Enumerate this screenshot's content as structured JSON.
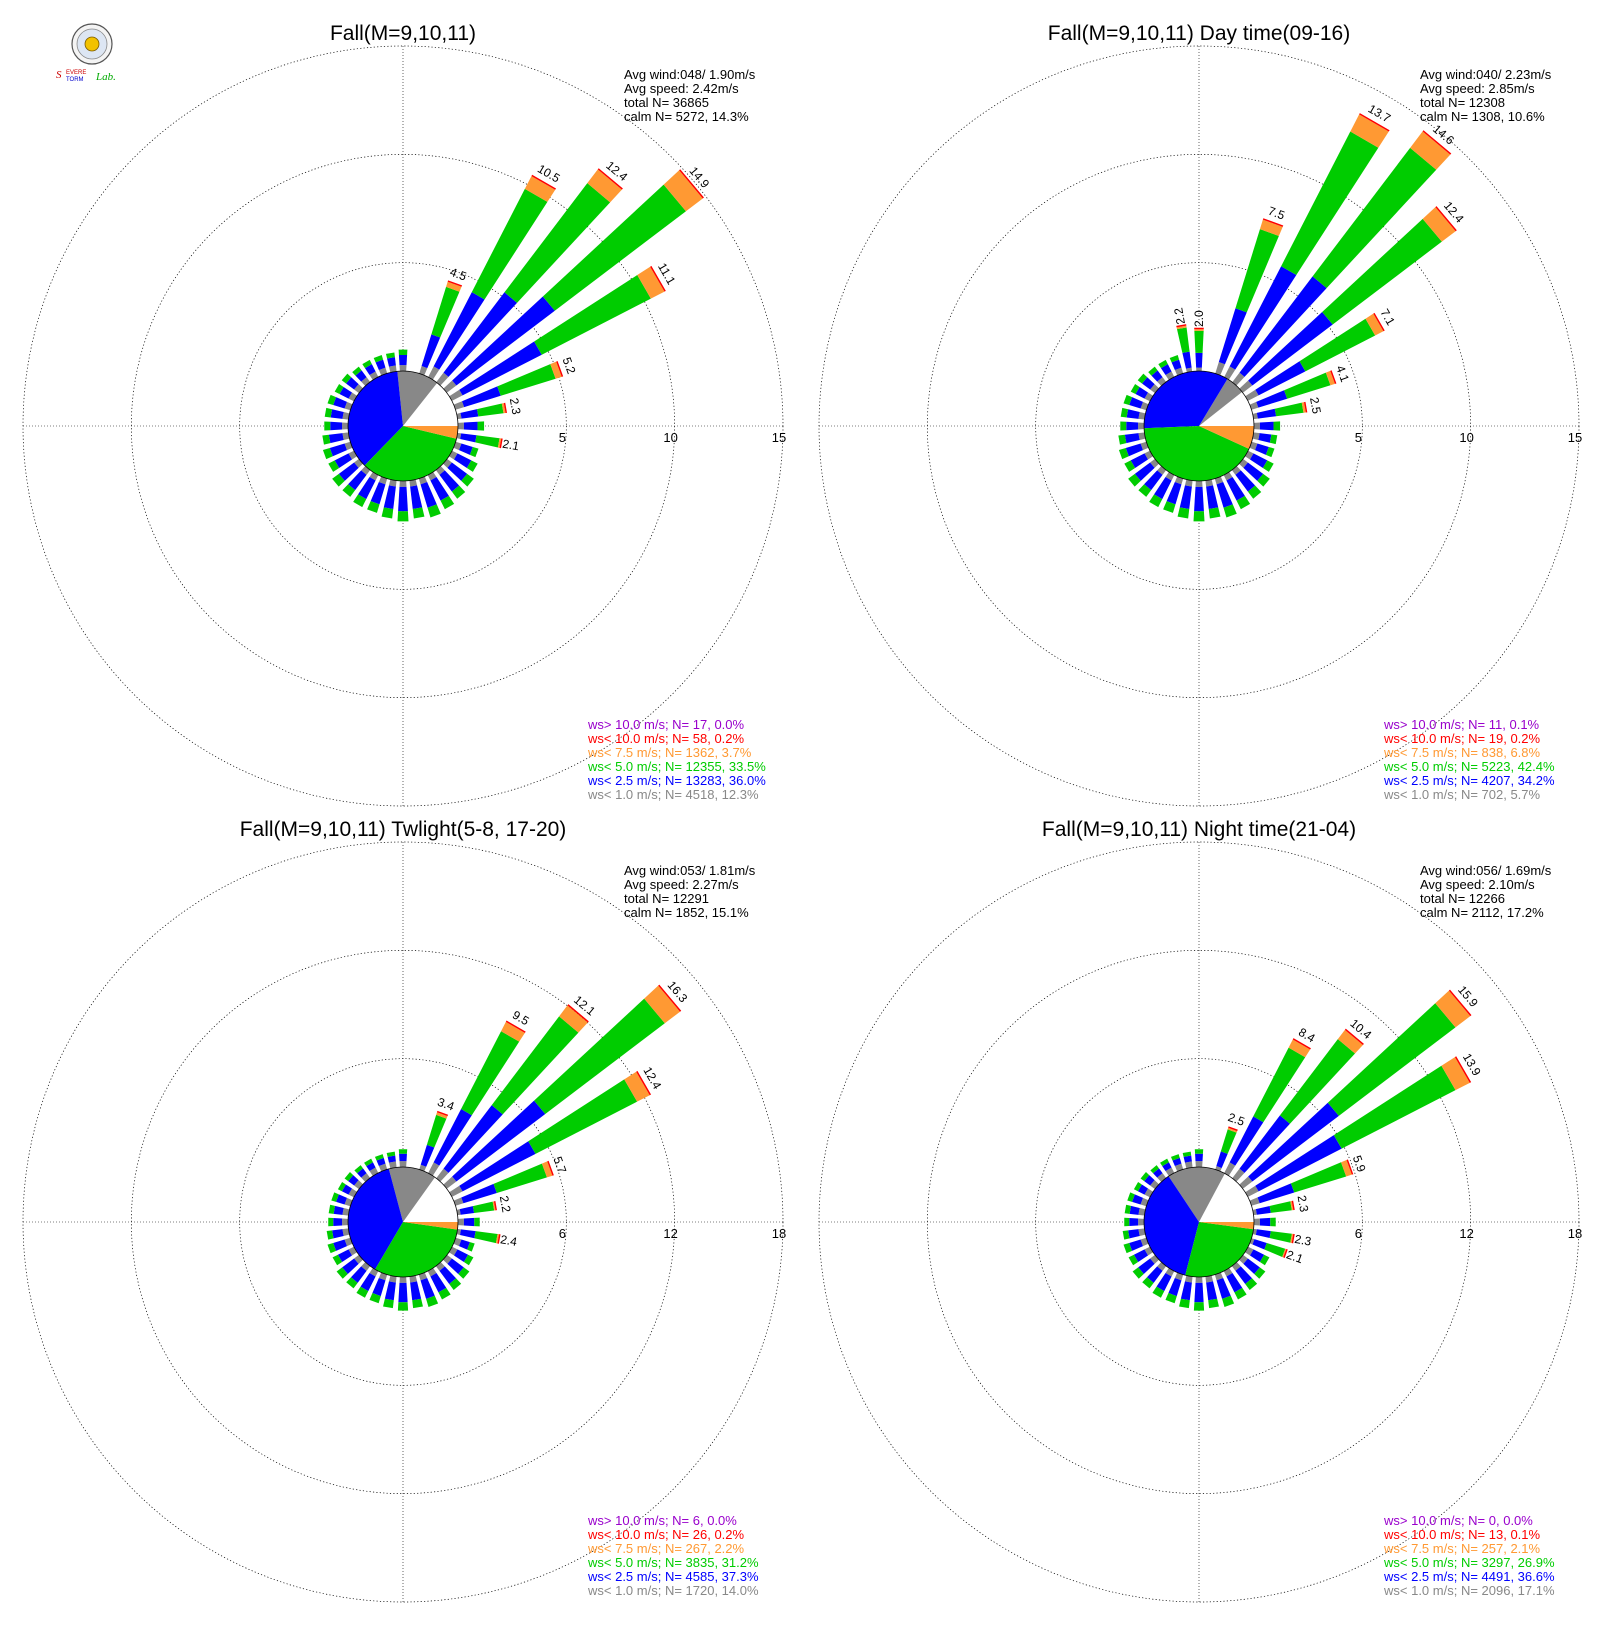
{
  "logo": {
    "text_a": "Severe",
    "text_b": "Storm",
    "text_c": "Lab."
  },
  "colors": {
    "gt10": "#9900cc",
    "lt10": "#ff0000",
    "lt75": "#ff9933",
    "lt50": "#00cc00",
    "lt25": "#0000ff",
    "lt10ms": "#888888"
  },
  "chart_data": [
    {
      "type": "wind-rose",
      "title": "Fall(M=9,10,11)",
      "info": {
        "avg_wind": "Avg wind:048/ 1.90m/s",
        "avg_speed": "Avg speed: 2.42m/s",
        "total": "total N=      36865",
        "calm": "calm N=   5272,  14.3%"
      },
      "rmax": 15,
      "ring_labels": [
        "5",
        "10",
        "15"
      ],
      "rings": [
        5,
        10,
        15
      ],
      "labeled_bars": [
        {
          "dir": 20,
          "value": 4.5,
          "label": "4.5"
        },
        {
          "dir": 30,
          "value": 10.5,
          "label": "10.5"
        },
        {
          "dir": 40,
          "value": 12.4,
          "label": "12.4"
        },
        {
          "dir": 50,
          "value": 14.9,
          "label": "14.9"
        },
        {
          "dir": 60,
          "value": 11.1,
          "label": "11.1"
        },
        {
          "dir": 70,
          "value": 5.2,
          "label": "5.2"
        },
        {
          "dir": 80,
          "value": 2.3,
          "label": "2.3"
        },
        {
          "dir": 100,
          "value": 2.1,
          "label": "2.1"
        }
      ],
      "pie": {
        "calm": 14.3,
        "lt10ms": 12.3,
        "lt25": 36.0,
        "lt50": 33.5,
        "lt75": 3.7
      },
      "legend": [
        {
          "key": "gt10",
          "text": "ws> 10.0 m/s; N=     17,  0.0%"
        },
        {
          "key": "lt10",
          "text": "ws< 10.0 m/s; N=     58,  0.2%"
        },
        {
          "key": "lt75",
          "text": "ws<  7.5 m/s; N=   1362,  3.7%"
        },
        {
          "key": "lt50",
          "text": "ws<  5.0 m/s; N= 12355, 33.5%"
        },
        {
          "key": "lt25",
          "text": "ws<  2.5 m/s; N= 13283, 36.0%"
        },
        {
          "key": "lt10ms",
          "text": "ws<  1.0 m/s; N=  4518, 12.3%"
        }
      ]
    },
    {
      "type": "wind-rose",
      "title": "Fall(M=9,10,11) Day time(09-16)",
      "info": {
        "avg_wind": "Avg wind:040/ 2.23m/s",
        "avg_speed": "Avg speed: 2.85m/s",
        "total": "total N=      12308",
        "calm": "calm N=   1308,  10.6%"
      },
      "rmax": 15,
      "ring_labels": [
        "5",
        "10",
        "15"
      ],
      "rings": [
        5,
        10,
        15
      ],
      "labeled_bars": [
        {
          "dir": 350,
          "value": 2.2,
          "label": "2.2"
        },
        {
          "dir": 360,
          "value": 2.0,
          "label": "2.0"
        },
        {
          "dir": 20,
          "value": 7.5,
          "label": "7.5"
        },
        {
          "dir": 30,
          "value": 13.7,
          "label": "13.7"
        },
        {
          "dir": 40,
          "value": 14.6,
          "label": "14.6"
        },
        {
          "dir": 50,
          "value": 12.4,
          "label": "12.4"
        },
        {
          "dir": 60,
          "value": 7.1,
          "label": "7.1"
        },
        {
          "dir": 70,
          "value": 4.1,
          "label": "4.1"
        },
        {
          "dir": 80,
          "value": 2.5,
          "label": "2.5"
        }
      ],
      "pie": {
        "calm": 10.6,
        "lt10ms": 5.7,
        "lt25": 34.2,
        "lt50": 42.4,
        "lt75": 6.8
      },
      "legend": [
        {
          "key": "gt10",
          "text": "ws> 10.0 m/s; N=     11,  0.1%"
        },
        {
          "key": "lt10",
          "text": "ws< 10.0 m/s; N=     19,  0.2%"
        },
        {
          "key": "lt75",
          "text": "ws<  7.5 m/s; N=    838,  6.8%"
        },
        {
          "key": "lt50",
          "text": "ws<  5.0 m/s; N=   5223, 42.4%"
        },
        {
          "key": "lt25",
          "text": "ws<  2.5 m/s; N=   4207, 34.2%"
        },
        {
          "key": "lt10ms",
          "text": "ws<  1.0 m/s; N=    702,  5.7%"
        }
      ]
    },
    {
      "type": "wind-rose",
      "title": "Fall(M=9,10,11) Twlight(5-8, 17-20)",
      "info": {
        "avg_wind": "Avg wind:053/ 1.81m/s",
        "avg_speed": "Avg speed: 2.27m/s",
        "total": "total N=      12291",
        "calm": "calm N=   1852,  15.1%"
      },
      "rmax": 18,
      "ring_labels": [
        "6",
        "12",
        "18"
      ],
      "rings": [
        6,
        12,
        18
      ],
      "labeled_bars": [
        {
          "dir": 20,
          "value": 3.4,
          "label": "3.4"
        },
        {
          "dir": 30,
          "value": 9.5,
          "label": "9.5"
        },
        {
          "dir": 40,
          "value": 12.1,
          "label": "12.1"
        },
        {
          "dir": 50,
          "value": 16.3,
          "label": "16.3"
        },
        {
          "dir": 60,
          "value": 12.4,
          "label": "12.4"
        },
        {
          "dir": 70,
          "value": 5.7,
          "label": "5.7"
        },
        {
          "dir": 80,
          "value": 2.2,
          "label": "2.2"
        },
        {
          "dir": 100,
          "value": 2.4,
          "label": "2.4"
        }
      ],
      "pie": {
        "calm": 15.1,
        "lt10ms": 14.0,
        "lt25": 37.3,
        "lt50": 31.2,
        "lt75": 2.2
      },
      "legend": [
        {
          "key": "gt10",
          "text": "ws> 10.0 m/s; N=      6,  0.0%"
        },
        {
          "key": "lt10",
          "text": "ws< 10.0 m/s; N=     26,  0.2%"
        },
        {
          "key": "lt75",
          "text": "ws<  7.5 m/s; N=    267,  2.2%"
        },
        {
          "key": "lt50",
          "text": "ws<  5.0 m/s; N=   3835, 31.2%"
        },
        {
          "key": "lt25",
          "text": "ws<  2.5 m/s; N=   4585, 37.3%"
        },
        {
          "key": "lt10ms",
          "text": "ws<  1.0 m/s; N=   1720, 14.0%"
        }
      ]
    },
    {
      "type": "wind-rose",
      "title": "Fall(M=9,10,11) Night time(21-04)",
      "info": {
        "avg_wind": "Avg wind:056/ 1.69m/s",
        "avg_speed": "Avg speed: 2.10m/s",
        "total": "total N=      12266",
        "calm": "calm N=   2112,  17.2%"
      },
      "rmax": 18,
      "ring_labels": [
        "6",
        "12",
        "18"
      ],
      "rings": [
        6,
        12,
        18
      ],
      "labeled_bars": [
        {
          "dir": 20,
          "value": 2.5,
          "label": "2.5"
        },
        {
          "dir": 30,
          "value": 8.4,
          "label": "8.4"
        },
        {
          "dir": 40,
          "value": 10.4,
          "label": "10.4"
        },
        {
          "dir": 50,
          "value": 15.9,
          "label": "15.9"
        },
        {
          "dir": 60,
          "value": 13.9,
          "label": "13.9"
        },
        {
          "dir": 70,
          "value": 5.9,
          "label": "5.9"
        },
        {
          "dir": 80,
          "value": 2.3,
          "label": "2.3"
        },
        {
          "dir": 100,
          "value": 2.3,
          "label": "2.3"
        },
        {
          "dir": 110,
          "value": 2.1,
          "label": "2.1"
        }
      ],
      "pie": {
        "calm": 17.2,
        "lt10ms": 17.1,
        "lt25": 36.6,
        "lt50": 26.9,
        "lt75": 2.1
      },
      "legend": [
        {
          "key": "gt10",
          "text": "ws> 10.0 m/s; N=      0,  0.0%"
        },
        {
          "key": "lt10",
          "text": "ws< 10.0 m/s; N=     13,  0.1%"
        },
        {
          "key": "lt75",
          "text": "ws<  7.5 m/s; N=    257,  2.1%"
        },
        {
          "key": "lt50",
          "text": "ws<  5.0 m/s; N=   3297, 26.9%"
        },
        {
          "key": "lt25",
          "text": "ws<  2.5 m/s; N=   4491, 36.6%"
        },
        {
          "key": "lt10ms",
          "text": "ws<  1.0 m/s; N=   2096, 17.1%"
        }
      ]
    }
  ]
}
